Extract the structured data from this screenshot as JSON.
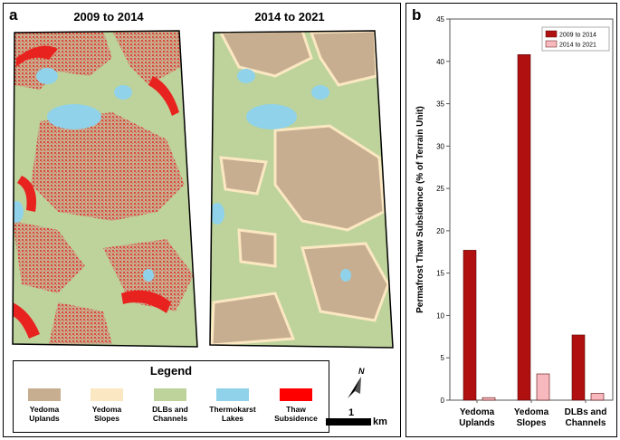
{
  "panels": {
    "a": {
      "letter": "a",
      "map_titles": [
        "2009 to 2014",
        "2014 to 2021"
      ],
      "legend": {
        "title": "Legend",
        "items": [
          {
            "label": "Yedoma\nUplands",
            "color": "#c8ae90"
          },
          {
            "label": "Yedoma\nSlopes",
            "color": "#fbe8c2"
          },
          {
            "label": "DLBs and\nChannels",
            "color": "#bdd39b"
          },
          {
            "label": "Thermokarst\nLakes",
            "color": "#8fd2ea"
          },
          {
            "label": "Thaw\nSubsidence",
            "color": "#ff0000"
          }
        ]
      },
      "north_label": "N",
      "scale": {
        "value": "1",
        "unit": "km"
      }
    },
    "b": {
      "letter": "b"
    }
  },
  "colors": {
    "upland": "#c8ae90",
    "slope": "#fbe8c2",
    "dlb": "#bdd39b",
    "lake": "#8fd2ea",
    "thaw": "#e8231f",
    "bar_dark": "#b01010",
    "bar_light": "#f7b9bd"
  },
  "chart_data": {
    "type": "bar",
    "categories": [
      "Yedoma\nUplands",
      "Yedoma\nSlopes",
      "DLBs and\nChannels"
    ],
    "series": [
      {
        "name": "2009 to 2014",
        "values": [
          17.7,
          40.8,
          7.7
        ],
        "color": "#b01010"
      },
      {
        "name": "2014 to 2021",
        "values": [
          0.3,
          3.1,
          0.8
        ],
        "color": "#f7b9bd"
      }
    ],
    "ylabel": "Permafrost Thaw Subsidence (% of Terrain Unit)",
    "xlabel": "",
    "ylim": [
      0,
      45
    ],
    "yticks": [
      0,
      5,
      10,
      15,
      20,
      25,
      30,
      35,
      40,
      45
    ],
    "legend_position": "top-right",
    "grid": false
  }
}
